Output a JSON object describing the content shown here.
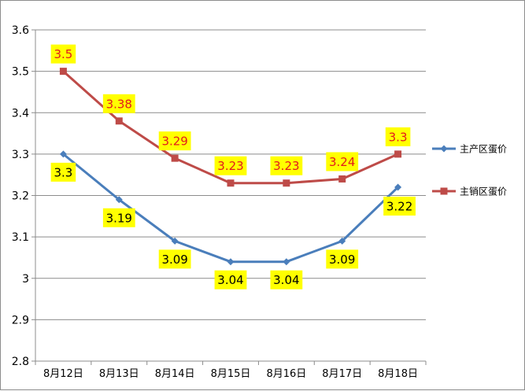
{
  "chart_data": {
    "type": "line",
    "categories": [
      "8月12日",
      "8月13日",
      "8月14日",
      "8月15日",
      "8月16日",
      "8月17日",
      "8月18日"
    ],
    "ylim": [
      2.8,
      3.6
    ],
    "yticks": [
      "3.6",
      "3.5",
      "3.4",
      "3.3",
      "3.2",
      "3.1",
      "3",
      "2.9",
      "2.8"
    ],
    "ytick_values": [
      3.6,
      3.5,
      3.4,
      3.3,
      3.2,
      3.1,
      3.0,
      2.9,
      2.8
    ],
    "grid": true,
    "legend_position": "right",
    "series": [
      {
        "name": "主产区蛋价",
        "color": "#4a7ebb",
        "marker": "diamond",
        "values": [
          3.3,
          3.19,
          3.09,
          3.04,
          3.04,
          3.09,
          3.22
        ],
        "labels": [
          "3.3",
          "3.19",
          "3.09",
          "3.04",
          "3.04",
          "3.09",
          "3.22"
        ]
      },
      {
        "name": "主销区蛋价",
        "color": "#be4b48",
        "marker": "square",
        "values": [
          3.5,
          3.38,
          3.29,
          3.23,
          3.23,
          3.24,
          3.3
        ],
        "labels": [
          "3.5",
          "3.38",
          "3.29",
          "3.23",
          "3.23",
          "3.24",
          "3.3"
        ]
      }
    ],
    "label_bg_color": "#ffff00"
  }
}
